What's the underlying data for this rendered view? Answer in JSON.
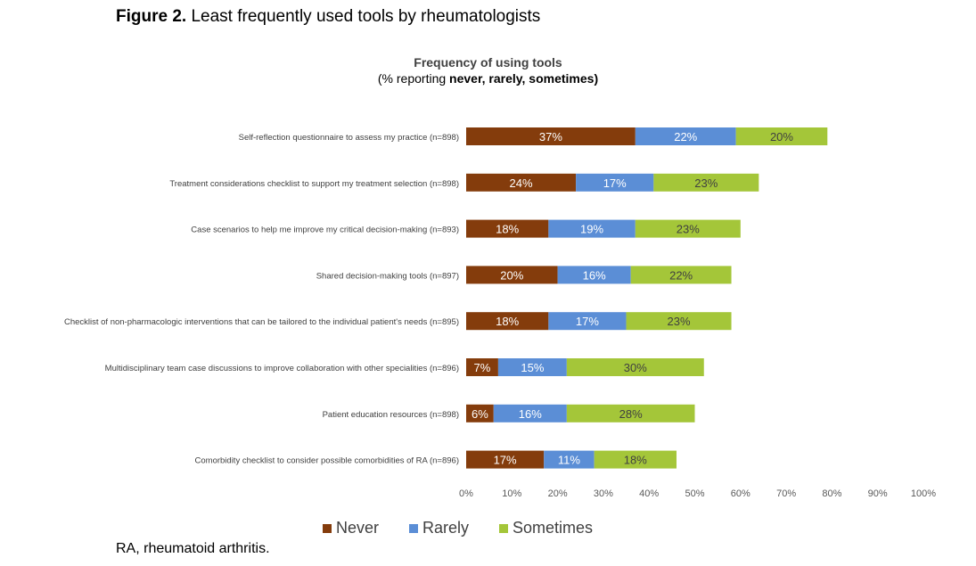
{
  "figure": {
    "label": "Figure 2.",
    "title": "Least frequently used tools by rheumatologists"
  },
  "footnote": "RA, rheumatoid arthritis.",
  "colors": {
    "never": "#843C0C",
    "rarely": "#5B8ED6",
    "sometimes": "#A4C639",
    "axis_text": "#595959"
  },
  "chart_data": {
    "type": "bar",
    "orientation": "horizontal",
    "stacked": true,
    "title": "Frequency of using tools",
    "subtitle_prefix": "(% reporting ",
    "subtitle_bold": "never, rarely, sometimes)",
    "categories": [
      "Self-reflection questionnaire to assess my practice (n=898)",
      "Treatment considerations checklist to support my treatment selection (n=898)",
      "Case scenarios to help me improve my critical decision-making (n=893)",
      "Shared decision-making tools (n=897)",
      "Checklist of non-pharmacologic interventions that can be tailored to the individual patient's needs (n=895)",
      "Multidisciplinary team case discussions to improve collaboration with other specialities (n=896)",
      "Patient education resources (n=898)",
      "Comorbidity checklist to consider possible comorbidities of RA (n=896)"
    ],
    "series": [
      {
        "name": "Never",
        "color": "#843C0C",
        "values": [
          37,
          24,
          18,
          20,
          18,
          7,
          6,
          17
        ],
        "labels": [
          "37%",
          "24%",
          "18%",
          "20%",
          "18%",
          "7%",
          "6%",
          "17%"
        ]
      },
      {
        "name": "Rarely",
        "color": "#5B8ED6",
        "values": [
          22,
          17,
          19,
          16,
          17,
          15,
          16,
          11
        ],
        "labels": [
          "22%",
          "17%",
          "19%",
          "16%",
          "17%",
          "15%",
          "16%",
          "11%"
        ]
      },
      {
        "name": "Sometimes",
        "color": "#A4C639",
        "values": [
          20,
          23,
          23,
          22,
          23,
          30,
          28,
          18
        ],
        "labels": [
          "20%",
          "23%",
          "23%",
          "22%",
          "23%",
          "30%",
          "28%",
          "18%"
        ]
      }
    ],
    "xlim": [
      0,
      100
    ],
    "xticks": [
      "0%",
      "10%",
      "20%",
      "30%",
      "40%",
      "50%",
      "60%",
      "70%",
      "80%",
      "90%",
      "100%"
    ],
    "legend_position": "bottom",
    "grid": false
  }
}
